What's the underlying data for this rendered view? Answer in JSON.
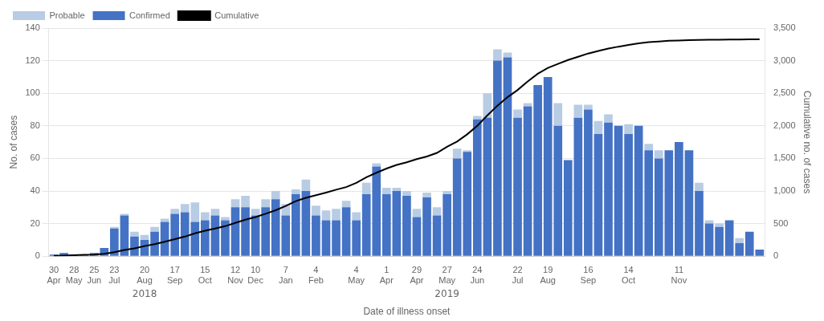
{
  "chart_data": {
    "type": "bar",
    "stacked": true,
    "categories": [
      "30\nApr",
      null,
      "28\nMay",
      null,
      "25\nJun",
      null,
      "23\nJul",
      null,
      null,
      "20\nAug",
      null,
      null,
      "17\nSep",
      null,
      null,
      "15\nOct",
      null,
      null,
      "12\nNov",
      null,
      "10\nDec",
      null,
      null,
      "7\nJan",
      null,
      null,
      "4\nFeb",
      null,
      null,
      null,
      "4\nMay",
      null,
      null,
      "1\nApr",
      null,
      null,
      "29\nApr",
      null,
      null,
      "27\nMay",
      null,
      null,
      "24\nJun",
      null,
      null,
      null,
      "22\nJul",
      null,
      null,
      "19\nAug",
      null,
      null,
      null,
      "16\nSep",
      null,
      null,
      null,
      "14\nOct",
      null,
      null,
      null,
      null,
      "11\nNov",
      null,
      null,
      null,
      null,
      null,
      null,
      null,
      null
    ],
    "series": [
      {
        "name": "Confirmed",
        "type": "bar",
        "color": "#4472C4",
        "values": [
          1,
          2,
          1,
          1,
          2,
          5,
          17,
          25,
          12,
          10,
          15,
          21,
          26,
          27,
          21,
          22,
          25,
          22,
          30,
          30,
          25,
          30,
          35,
          25,
          38,
          40,
          25,
          22,
          22,
          30,
          22,
          38,
          55,
          38,
          40,
          37,
          24,
          36,
          25,
          38,
          60,
          64,
          84,
          85,
          120,
          122,
          85,
          92,
          105,
          110,
          80,
          59,
          85,
          90,
          75,
          82,
          80,
          75,
          80,
          65,
          60,
          65,
          70,
          65,
          40,
          20,
          18,
          22,
          8,
          15,
          4
        ]
      },
      {
        "name": "Probable",
        "type": "bar",
        "color": "#B8CCE4",
        "values": [
          0,
          0,
          0,
          0,
          0,
          0,
          1,
          1,
          3,
          3,
          3,
          2,
          3,
          5,
          12,
          5,
          4,
          2,
          5,
          7,
          4,
          5,
          5,
          7,
          3,
          7,
          6,
          6,
          7,
          4,
          5,
          7,
          2,
          4,
          2,
          3,
          5,
          3,
          5,
          2,
          6,
          1,
          2,
          15,
          7,
          3,
          5,
          2,
          0,
          0,
          14,
          0,
          8,
          3,
          8,
          5,
          0,
          6,
          0,
          4,
          5,
          0,
          0,
          0,
          5,
          2,
          2,
          0,
          3,
          0,
          0
        ]
      },
      {
        "name": "Cumulative",
        "type": "line",
        "axis": "y2",
        "color": "#000000",
        "values": [
          5,
          10,
          15,
          20,
          25,
          35,
          60,
          95,
          120,
          155,
          185,
          220,
          260,
          300,
          350,
          390,
          425,
          460,
          510,
          560,
          600,
          650,
          705,
          770,
          845,
          895,
          935,
          975,
          1020,
          1060,
          1125,
          1210,
          1280,
          1345,
          1400,
          1440,
          1490,
          1530,
          1585,
          1680,
          1760,
          1870,
          2000,
          2160,
          2310,
          2440,
          2550,
          2680,
          2800,
          2890,
          2950,
          3010,
          3060,
          3110,
          3150,
          3185,
          3215,
          3240,
          3265,
          3285,
          3295,
          3305,
          3310,
          3315,
          3318,
          3320,
          3322,
          3323,
          3325,
          3327,
          3328
        ]
      }
    ],
    "ylim": [
      0,
      140
    ],
    "yticks": [
      0,
      20,
      40,
      60,
      80,
      100,
      120,
      140
    ],
    "y2lim": [
      0,
      3500
    ],
    "y2ticks": [
      0,
      500,
      {
        "value": 1000,
        "label": "1,000"
      },
      {
        "value": 1500,
        "label": "1,500"
      },
      {
        "value": 2000,
        "label": "2,000"
      },
      {
        "value": 2500,
        "label": "2,500"
      },
      {
        "value": 3000,
        "label": "3,000"
      },
      {
        "value": 3500,
        "label": "3,500"
      }
    ],
    "ylabel": "No. of cases",
    "y2label": "Cumulative no. of cases",
    "xlabel": "Date of illness onset",
    "annotations": [
      {
        "text": "2018",
        "x": 9
      },
      {
        "text": "2019",
        "x": 39
      }
    ],
    "grid": "y",
    "legend": "upper left"
  }
}
